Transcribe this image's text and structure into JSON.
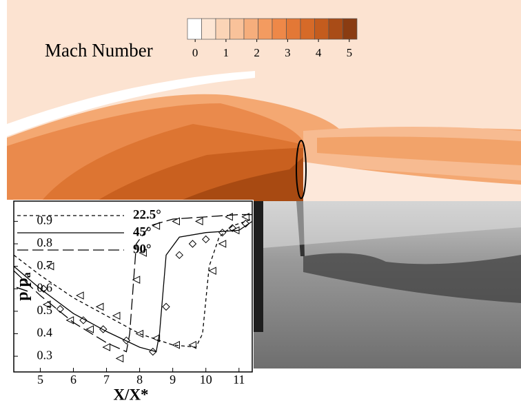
{
  "chart_data": [
    {
      "type": "colorbar",
      "title": "Mach Number",
      "lim": [
        -0.25,
        5.25
      ],
      "ticks": [
        0,
        1,
        2,
        3,
        4,
        5
      ],
      "colors": [
        "#ffffff",
        "#fde6d4",
        "#fbd4b6",
        "#f9c29a",
        "#f6ae7c",
        "#f39b60",
        "#ee8848",
        "#e37836",
        "#d66a28",
        "#c45c1e",
        "#a94c17",
        "#8a3c12"
      ]
    },
    {
      "type": "line",
      "xlabel": "X/X*",
      "ylabel": "p/p",
      "ylabel_subscript": "a",
      "xlim": [
        4.2,
        11.4
      ],
      "ylim": [
        0.23,
        0.99
      ],
      "xticks": [
        5,
        6,
        7,
        8,
        9,
        10,
        11
      ],
      "yticks": [
        0.3,
        0.4,
        0.5,
        0.6,
        0.7,
        0.8,
        0.9
      ],
      "legend": "upper left",
      "series": [
        {
          "name": "22.5°",
          "color": "#000000",
          "dash": "short",
          "x": [
            4.2,
            5,
            6,
            7,
            8,
            9,
            9.7,
            9.9,
            10.1,
            10.4,
            10.8,
            11.4
          ],
          "values": [
            0.75,
            0.66,
            0.56,
            0.48,
            0.4,
            0.35,
            0.34,
            0.4,
            0.7,
            0.83,
            0.88,
            0.91
          ]
        },
        {
          "name": "45°",
          "color": "#000000",
          "dash": "solid",
          "x": [
            4.2,
            5,
            6,
            7,
            8,
            8.5,
            8.6,
            8.8,
            9.2,
            10,
            11,
            11.4
          ],
          "values": [
            0.7,
            0.6,
            0.49,
            0.41,
            0.34,
            0.32,
            0.4,
            0.75,
            0.83,
            0.85,
            0.86,
            0.9
          ]
        },
        {
          "name": "90°",
          "color": "#000000",
          "dash": "long",
          "x": [
            4.2,
            5,
            6,
            7,
            7.6,
            7.7,
            7.9,
            8.3,
            9,
            10,
            11,
            11.4
          ],
          "values": [
            0.68,
            0.57,
            0.45,
            0.36,
            0.32,
            0.4,
            0.8,
            0.88,
            0.91,
            0.92,
            0.93,
            0.93
          ]
        },
        {
          "marker": "triangle-left",
          "color": "#000000",
          "x": [
            5.3,
            6.2,
            6.8,
            7.3,
            8.0,
            8.5,
            9.1,
            9.6,
            10.2,
            10.5,
            10.9,
            11.2
          ],
          "values": [
            0.7,
            0.57,
            0.52,
            0.48,
            0.4,
            0.38,
            0.35,
            0.35,
            0.68,
            0.8,
            0.86,
            0.92
          ]
        },
        {
          "marker": "triangle-left",
          "color": "#000000",
          "x": [
            5.2,
            5.9,
            6.5,
            7.0,
            7.4,
            7.9,
            8.1,
            8.5,
            9.1,
            9.8,
            10.7
          ],
          "values": [
            0.53,
            0.46,
            0.42,
            0.34,
            0.29,
            0.64,
            0.76,
            0.88,
            0.9,
            0.9,
            0.92
          ]
        },
        {
          "marker": "diamond",
          "color": "#000000",
          "x": [
            5.1,
            5.6,
            6.3,
            6.9,
            7.6,
            8.4,
            8.8,
            9.2,
            9.6,
            10.0,
            10.5,
            10.8,
            11.2
          ],
          "values": [
            0.6,
            0.51,
            0.46,
            0.42,
            0.37,
            0.32,
            0.52,
            0.75,
            0.8,
            0.82,
            0.85,
            0.87,
            0.89
          ]
        }
      ]
    }
  ]
}
